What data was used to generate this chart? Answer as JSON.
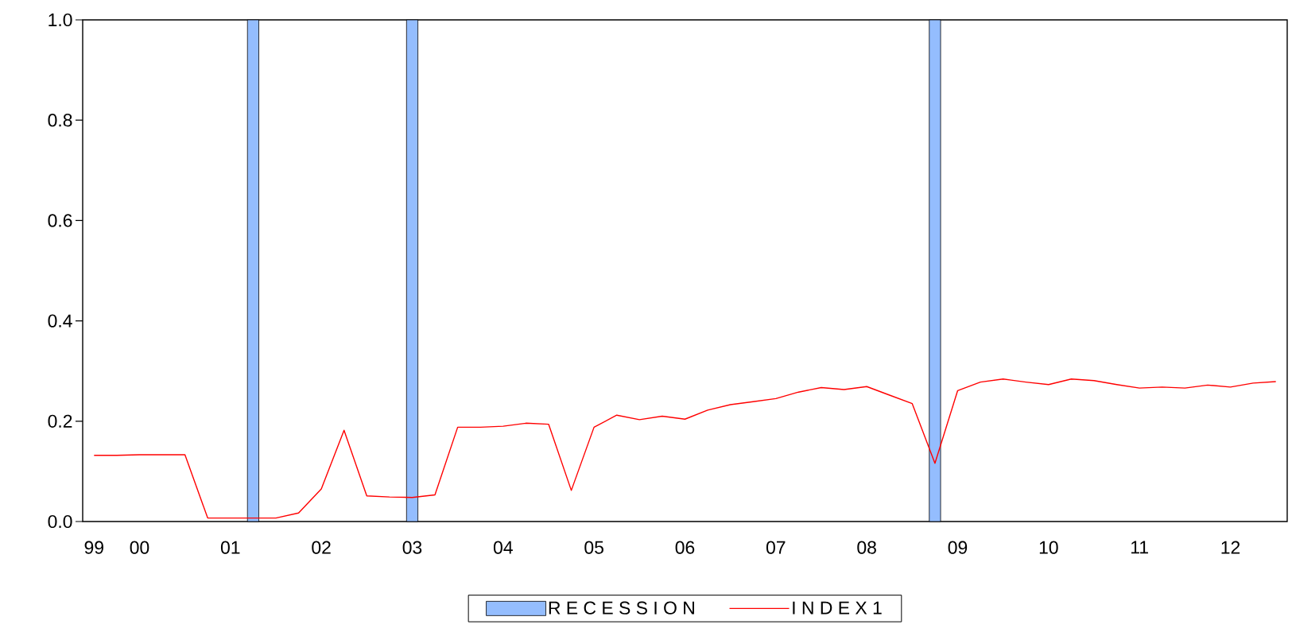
{
  "chart_data": {
    "type": "line",
    "legend": "bottom",
    "categories": [
      "99",
      null,
      "00",
      null,
      null,
      null,
      "01",
      null,
      null,
      null,
      "02",
      null,
      null,
      null,
      "03",
      null,
      null,
      null,
      "04",
      null,
      null,
      null,
      "05",
      null,
      null,
      null,
      "06",
      null,
      null,
      null,
      "07",
      null,
      null,
      null,
      "08",
      null,
      null,
      null,
      "09",
      null,
      null,
      null,
      "10",
      null,
      null,
      null,
      "11",
      null,
      null,
      null,
      "12",
      null,
      null
    ],
    "ylim": [
      0,
      1
    ],
    "yticks": [
      {
        "value": 0,
        "label": "0.0"
      },
      {
        "value": 0.2,
        "label": "0.2"
      },
      {
        "value": 0.4,
        "label": "0.4"
      },
      {
        "value": 0.6,
        "label": "0.6"
      },
      {
        "value": 0.8,
        "label": "0.8"
      },
      {
        "value": 1,
        "label": "1.0"
      }
    ],
    "series": [
      {
        "name": "R E C E S S I O N",
        "type": "bar",
        "color": "#94bdfe",
        "values": [
          null,
          null,
          null,
          null,
          null,
          null,
          null,
          1,
          null,
          null,
          null,
          null,
          null,
          null,
          1,
          null,
          null,
          null,
          null,
          null,
          null,
          null,
          null,
          null,
          null,
          null,
          null,
          null,
          null,
          null,
          null,
          null,
          null,
          null,
          null,
          null,
          null,
          1,
          null,
          null,
          null,
          null,
          null,
          null,
          null,
          null,
          null,
          null,
          null,
          null,
          null,
          null,
          null
        ]
      },
      {
        "name": "I N D E X 1",
        "color": "#ff0000",
        "values": [
          0.132,
          0.132,
          0.133,
          0.133,
          0.133,
          0.007,
          0.007,
          0.007,
          0.007,
          0.017,
          0.065,
          0.182,
          0.051,
          0.049,
          0.048,
          0.053,
          0.188,
          0.188,
          0.19,
          0.196,
          0.194,
          0.062,
          0.188,
          0.212,
          0.203,
          0.21,
          0.204,
          0.222,
          0.233,
          0.239,
          0.245,
          0.258,
          0.267,
          0.263,
          0.269,
          0.252,
          0.235,
          0.116,
          0.261,
          0.278,
          0.284,
          0.278,
          0.273,
          0.284,
          0.281,
          0.273,
          0.266,
          0.268,
          0.266,
          0.272,
          0.268,
          0.276,
          0.279
        ]
      }
    ]
  }
}
